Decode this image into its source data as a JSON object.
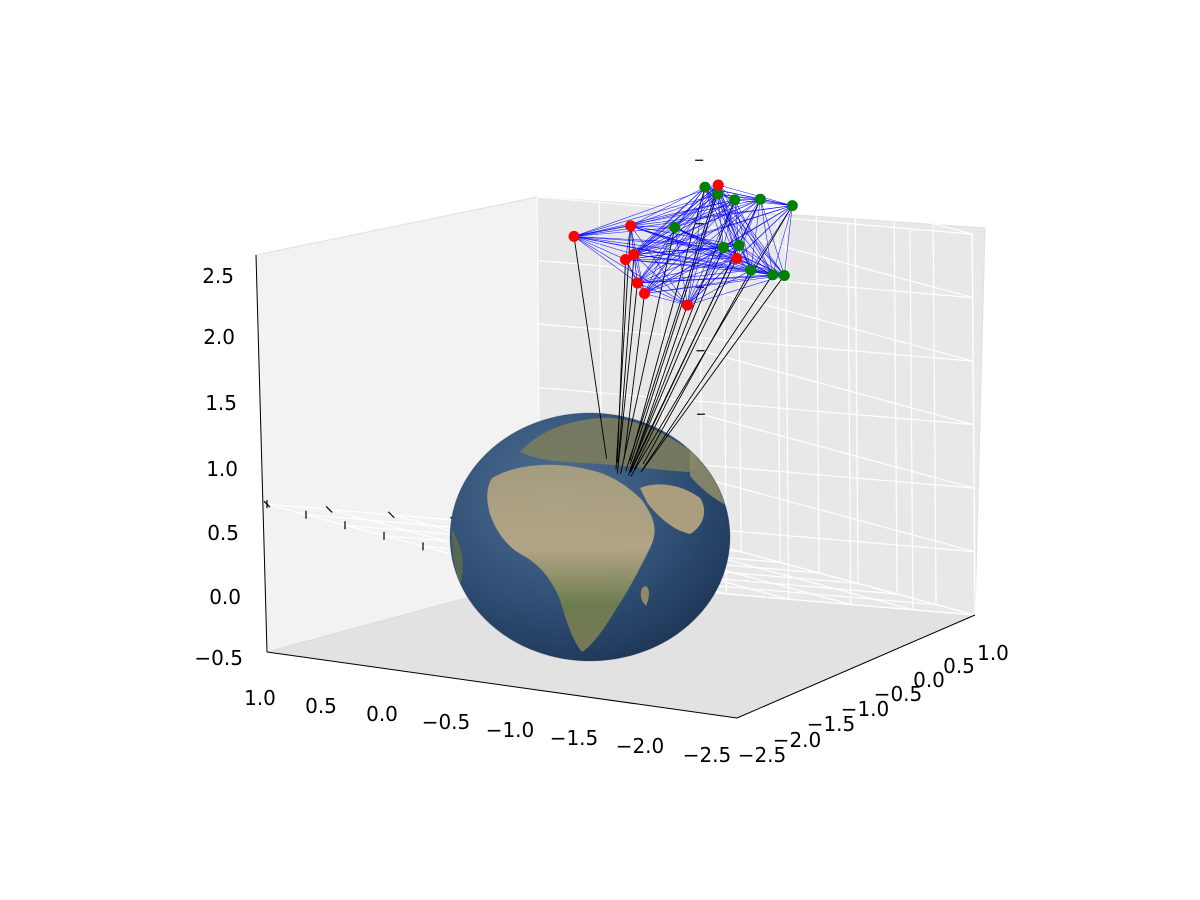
{
  "chart_data": {
    "type": "scatter",
    "projection": "3d",
    "title": "",
    "xlabel": "",
    "ylabel": "",
    "zlabel": "",
    "xlim": [
      -2.5,
      1.0
    ],
    "ylim": [
      -2.5,
      1.0
    ],
    "zlim": [
      -0.5,
      2.5
    ],
    "grid": true,
    "x_ticks": [
      "1.0",
      "0.5",
      "0.0",
      "−0.5",
      "−1.0",
      "−1.5",
      "−2.0",
      "−2.5"
    ],
    "y_ticks": [
      "−2.5",
      "−2.0",
      "−1.5",
      "−1.0",
      "−0.5",
      "0.0",
      "0.5",
      "1.0"
    ],
    "z_ticks": [
      "−0.5",
      "0.0",
      "0.5",
      "1.0",
      "1.5",
      "2.0",
      "2.5"
    ],
    "globe": {
      "kind": "earth-texture-sphere",
      "radius": 1.0,
      "center": [
        0,
        0,
        0
      ],
      "region_facing_viewer": "Africa and Europe"
    },
    "colors": {
      "node_green": "#008000",
      "node_red": "#ff0000",
      "mesh_edges": "#0000ff",
      "ground_links": "#000000"
    },
    "series": [
      {
        "color": "green",
        "points": [
          [
            -0.35,
            0.4,
            2.45
          ],
          [
            -0.6,
            0.3,
            2.45
          ],
          [
            -0.85,
            0.25,
            2.4
          ],
          [
            -1.15,
            0.3,
            2.4
          ],
          [
            -1.55,
            0.45,
            2.4
          ],
          [
            -0.8,
            0.25,
            2.05
          ],
          [
            -1.0,
            0.25,
            2.0
          ],
          [
            -0.3,
            0.3,
            1.9
          ],
          [
            -0.45,
            0.3,
            1.88
          ],
          [
            -0.65,
            0.25,
            1.88
          ],
          [
            -2.1,
            0.55,
            2.0
          ]
        ]
      },
      {
        "color": "red",
        "points": [
          [
            -0.9,
            0.15,
            2.5
          ],
          [
            -0.75,
            0.2,
            1.95
          ],
          [
            -0.75,
            -0.2,
            1.55
          ],
          [
            -1.3,
            -0.2,
            1.55
          ],
          [
            -1.55,
            -0.1,
            1.6
          ],
          [
            -1.95,
            0.1,
            2.0
          ],
          [
            -1.75,
            0.0,
            1.8
          ],
          [
            -1.78,
            -0.05,
            1.75
          ],
          [
            -2.2,
            -0.2,
            1.85
          ]
        ]
      }
    ]
  }
}
